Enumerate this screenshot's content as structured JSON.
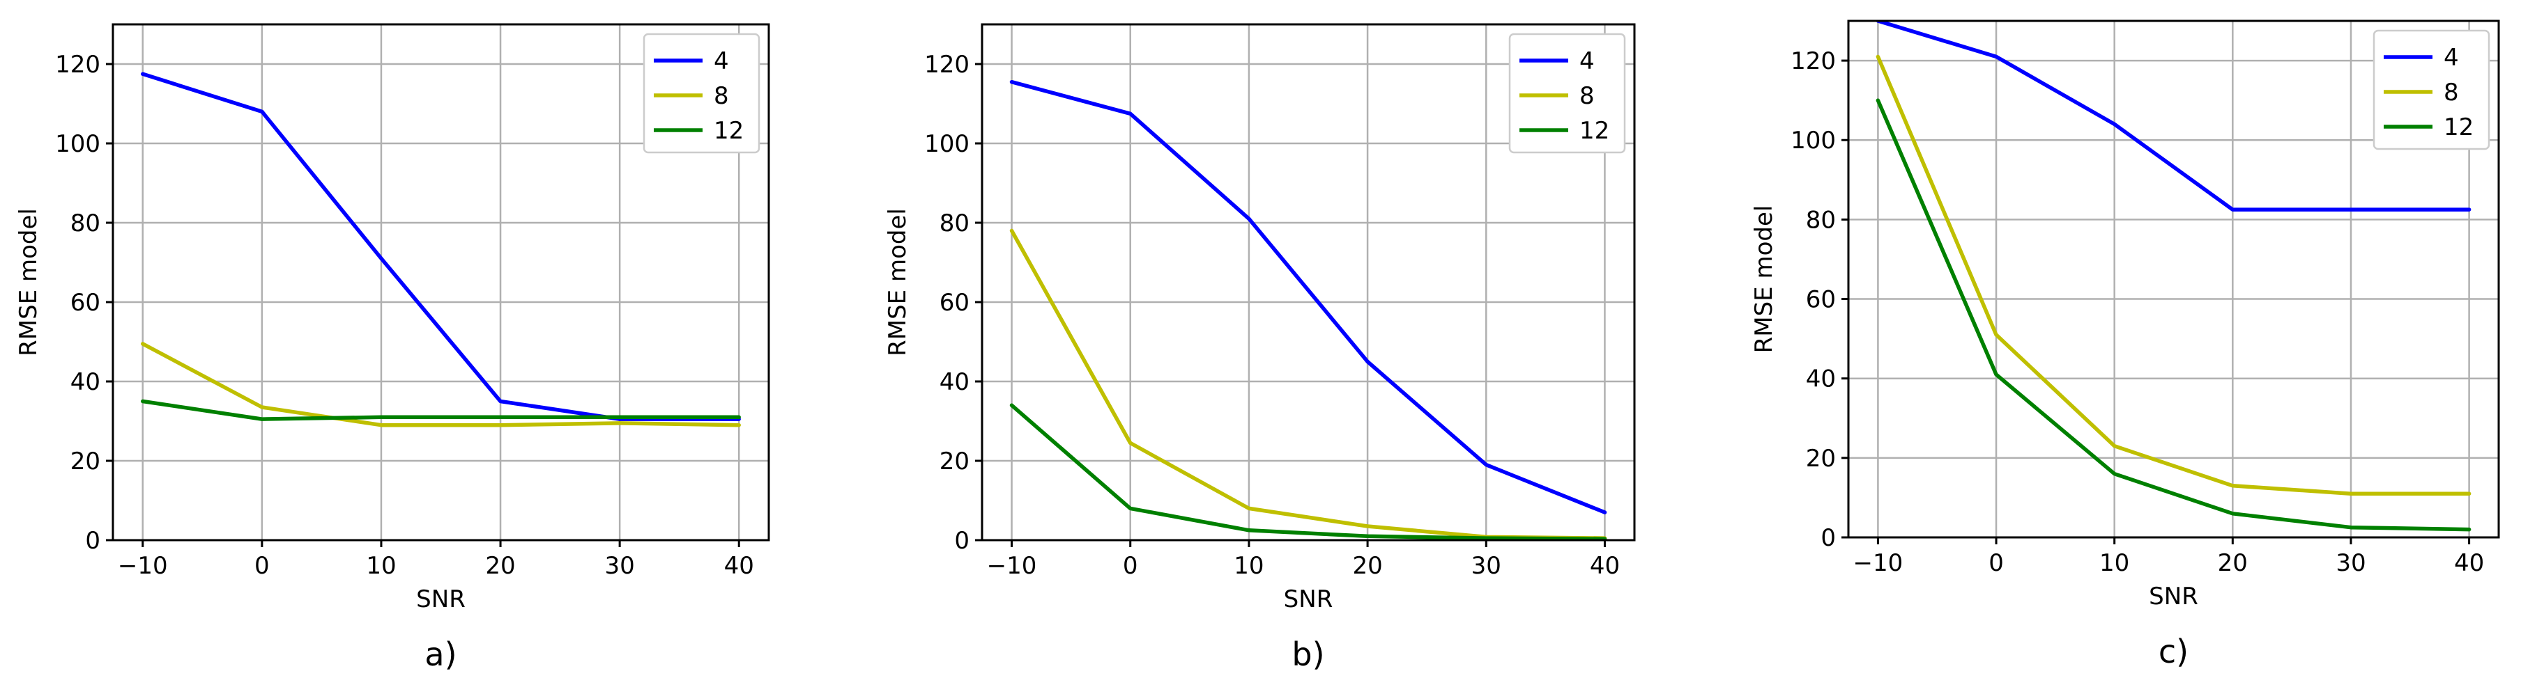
{
  "chart_data": [
    {
      "type": "line",
      "caption": "a)",
      "xlabel": "SNR",
      "ylabel": "RMSE model",
      "x": [
        -10,
        0,
        10,
        20,
        30,
        40
      ],
      "xticks": [
        -10,
        0,
        10,
        20,
        30,
        40
      ],
      "xlim": [
        -12.5,
        42.5
      ],
      "yticks": [
        0,
        20,
        40,
        60,
        80,
        100,
        120
      ],
      "ylim": [
        0,
        130
      ],
      "grid": true,
      "legend_position": "top-right",
      "series": [
        {
          "name": "4",
          "color": "#0000ff",
          "values": [
            117.5,
            108,
            71,
            35,
            30.5,
            30.5
          ]
        },
        {
          "name": "8",
          "color": "#bfbf00",
          "values": [
            49.5,
            33.5,
            29,
            29,
            29.5,
            29
          ]
        },
        {
          "name": "12",
          "color": "#008000",
          "values": [
            35,
            30.5,
            31,
            31,
            31,
            31
          ]
        }
      ]
    },
    {
      "type": "line",
      "caption": "b)",
      "xlabel": "SNR",
      "ylabel": "RMSE model",
      "x": [
        -10,
        0,
        10,
        20,
        30,
        40
      ],
      "xticks": [
        -10,
        0,
        10,
        20,
        30,
        40
      ],
      "xlim": [
        -12.5,
        42.5
      ],
      "yticks": [
        0,
        20,
        40,
        60,
        80,
        100,
        120
      ],
      "ylim": [
        0,
        130
      ],
      "grid": true,
      "legend_position": "top-right",
      "series": [
        {
          "name": "4",
          "color": "#0000ff",
          "values": [
            115.5,
            107.5,
            81,
            45,
            19,
            7
          ]
        },
        {
          "name": "8",
          "color": "#bfbf00",
          "values": [
            78,
            24.5,
            8,
            3.5,
            0.8,
            0.5
          ]
        },
        {
          "name": "12",
          "color": "#008000",
          "values": [
            34,
            8,
            2.5,
            1,
            0.5,
            0.3
          ]
        }
      ]
    },
    {
      "type": "line",
      "caption": "c)",
      "xlabel": "SNR",
      "ylabel": "RMSE model",
      "x": [
        -10,
        0,
        10,
        20,
        30,
        40
      ],
      "xticks": [
        -10,
        0,
        10,
        20,
        30,
        40
      ],
      "xlim": [
        -12.5,
        42.5
      ],
      "yticks": [
        0,
        20,
        40,
        60,
        80,
        100,
        120
      ],
      "ylim": [
        0,
        130
      ],
      "grid": true,
      "legend_position": "top-right",
      "series": [
        {
          "name": "4",
          "color": "#0000ff",
          "values": [
            130,
            121,
            104,
            82.5,
            82.5,
            82.5
          ]
        },
        {
          "name": "8",
          "color": "#bfbf00",
          "values": [
            121,
            51,
            23,
            13,
            11,
            11
          ]
        },
        {
          "name": "12",
          "color": "#008000",
          "values": [
            110,
            41,
            16,
            6,
            2.5,
            2
          ]
        }
      ]
    }
  ]
}
